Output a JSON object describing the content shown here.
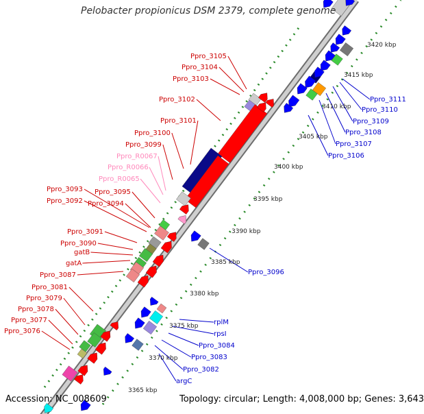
{
  "header": {
    "title": "Pelobacter propionicus DSM 2379, complete genome"
  },
  "footer": {
    "accession": "Accession: NC_008609",
    "topology": "Topology: circular; Length: 4,008,000 bp; Genes: 3,643"
  },
  "colors": {
    "forward_gene": "#ff0000",
    "reverse_gene": "#0000ff",
    "forward_label": "#cc0000",
    "reverse_label": "#0000cc",
    "rna_label": "#ff88bb",
    "tick_mark": "#2a8a2a",
    "backbone": "#9a9a9a"
  },
  "scale_labels": [
    "3365 kbp",
    "3370 kbp",
    "3375 kbp",
    "3380 kbp",
    "3385 kbp",
    "3390 kbp",
    "3395 kbp",
    "3400 kbp",
    "3405 kbp",
    "3410 kbp",
    "3415 kbp",
    "3420 kbp"
  ],
  "forward_labels": [
    "Ppro_3105",
    "Ppro_3104",
    "Ppro_3103",
    "Ppro_3102",
    "Ppro_3101",
    "Ppro_3100",
    "Ppro_3099",
    "Ppro_R0067",
    "Ppro_R0066",
    "Ppro_R0065",
    "Ppro_3095",
    "Ppro_3093",
    "Ppro_3092",
    "Ppro_3094",
    "Ppro_3091",
    "Ppro_3090",
    "gatB",
    "gatA",
    "Ppro_3087",
    "Ppro_3081",
    "Ppro_3079",
    "Ppro_3078",
    "Ppro_3077",
    "Ppro_3076"
  ],
  "reverse_labels": [
    "Ppro_3111",
    "Ppro_3110",
    "Ppro_3109",
    "Ppro_3108",
    "Ppro_3107",
    "Ppro_3106",
    "Ppro_3096",
    "rplM",
    "rpsI",
    "Ppro_3084",
    "Ppro_3083",
    "Ppro_3082",
    "argC"
  ]
}
